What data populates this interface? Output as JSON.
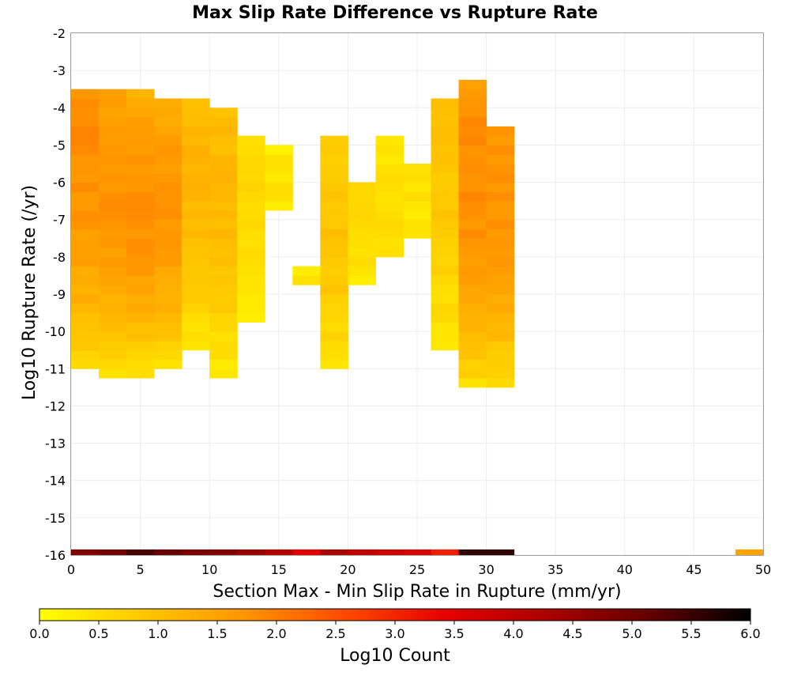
{
  "chart_data": {
    "type": "heatmap",
    "title": "Max Slip Rate Difference vs Rupture Rate",
    "xlabel": "Section Max - Min Slip Rate in Rupture (mm/yr)",
    "ylabel": "Log10 Rupture Rate (/yr)",
    "xlim": [
      0,
      50
    ],
    "ylim": [
      -16,
      -2
    ],
    "x_ticks": [
      "0",
      "5",
      "10",
      "15",
      "20",
      "25",
      "30",
      "35",
      "40",
      "45",
      "50"
    ],
    "y_ticks": [
      "-16",
      "-15",
      "-14",
      "-13",
      "-12",
      "-11",
      "-10",
      "-9",
      "-8",
      "-7",
      "-6",
      "-5",
      "-4",
      "-3",
      "-2"
    ],
    "grid": true,
    "bin_width_x": 2,
    "bin_height_y": 0.25,
    "colorbar": {
      "label": "Log10 Count",
      "range": [
        0,
        6
      ],
      "ticks": [
        "0.0",
        "0.5",
        "1.0",
        "1.5",
        "2.0",
        "2.5",
        "3.0",
        "3.5",
        "4.0",
        "4.5",
        "5.0",
        "5.5",
        "6.0"
      ],
      "colors": [
        "#ffff00",
        "#ffc800",
        "#ff9600",
        "#ff4b00",
        "#e60000",
        "#aa0000",
        "#640000",
        "#000000"
      ]
    },
    "columns": [
      {
        "x": 0,
        "y_min": -11.0,
        "y_max": -3.5,
        "center": -5.0,
        "peak": 1.8,
        "floor": 0.6
      },
      {
        "x": 2,
        "y_min": -11.25,
        "y_max": -3.5,
        "center": -6.0,
        "peak": 1.75,
        "floor": 0.5
      },
      {
        "x": 4,
        "y_min": -11.25,
        "y_max": -3.5,
        "center": -6.5,
        "peak": 1.8,
        "floor": 0.4
      },
      {
        "x": 6,
        "y_min": -11.0,
        "y_max": -3.75,
        "center": -6.5,
        "peak": 1.7,
        "floor": 0.5
      },
      {
        "x": 8,
        "y_min": -10.5,
        "y_max": -3.75,
        "center": -5.5,
        "peak": 1.2,
        "floor": 0.3
      },
      {
        "x": 10,
        "y_min": -11.25,
        "y_max": -4.0,
        "center": -6.0,
        "peak": 1.1,
        "floor": 0.3
      },
      {
        "x": 12,
        "y_min": -9.75,
        "y_max": -4.75,
        "center": -6.75,
        "peak": 0.6,
        "floor": 0.3
      },
      {
        "x": 14,
        "y_min": -6.75,
        "y_max": -5.0,
        "center": -6.5,
        "peak": 0.4,
        "floor": 0.3
      },
      {
        "x": 16,
        "y_min": -8.75,
        "y_max": -8.25,
        "center": -8.5,
        "peak": 0.4,
        "floor": 0.4
      },
      {
        "x": 18,
        "y_min": -11.0,
        "y_max": -4.75,
        "center": -7.25,
        "peak": 0.95,
        "floor": 0.35
      },
      {
        "x": 20,
        "y_min": -8.75,
        "y_max": -6.0,
        "center": -6.25,
        "peak": 0.6,
        "floor": 0.35
      },
      {
        "x": 22,
        "y_min": -8.0,
        "y_max": -4.75,
        "center": -6.75,
        "peak": 0.55,
        "floor": 0.3
      },
      {
        "x": 24,
        "y_min": -7.5,
        "y_max": -5.5,
        "center": -6.0,
        "peak": 0.45,
        "floor": 0.3
      },
      {
        "x": 26,
        "y_min": -10.5,
        "y_max": -3.75,
        "center": -4.0,
        "peak": 0.95,
        "floor": 0.35
      },
      {
        "x": 28,
        "y_min": -11.5,
        "y_max": -3.25,
        "center": -5.75,
        "peak": 1.85,
        "floor": 0.5
      },
      {
        "x": 30,
        "y_min": -11.5,
        "y_max": -4.5,
        "center": -6.0,
        "peak": 1.75,
        "floor": 0.5
      }
    ],
    "bottom_row": {
      "y_min": -16.0,
      "y_max": -15.85,
      "bins": [
        {
          "x": 0,
          "value": 4.8
        },
        {
          "x": 2,
          "value": 5.0
        },
        {
          "x": 4,
          "value": 5.4
        },
        {
          "x": 6,
          "value": 5.1
        },
        {
          "x": 8,
          "value": 4.9
        },
        {
          "x": 10,
          "value": 4.8
        },
        {
          "x": 12,
          "value": 4.5
        },
        {
          "x": 14,
          "value": 4.2
        },
        {
          "x": 16,
          "value": 3.5
        },
        {
          "x": 18,
          "value": 4.3
        },
        {
          "x": 20,
          "value": 4.0
        },
        {
          "x": 22,
          "value": 3.8
        },
        {
          "x": 24,
          "value": 3.6
        },
        {
          "x": 26,
          "value": 3.1
        },
        {
          "x": 28,
          "value": 5.6
        },
        {
          "x": 30,
          "value": 5.6
        },
        {
          "x": 48,
          "value": 1.5
        }
      ]
    }
  }
}
